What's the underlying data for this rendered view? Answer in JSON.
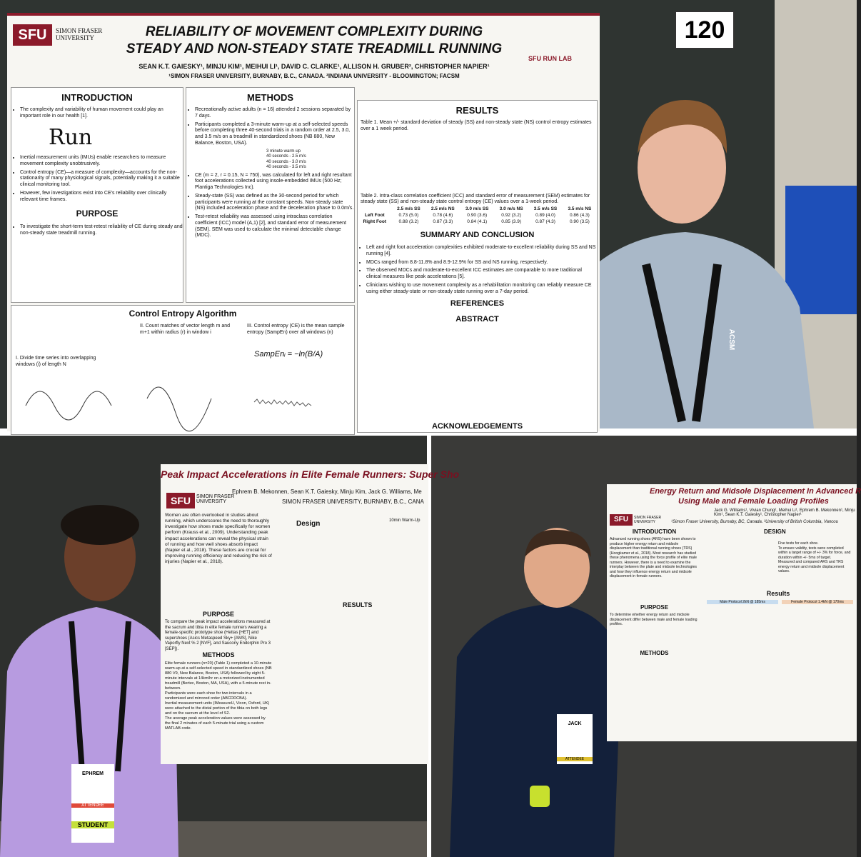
{
  "top": {
    "number": "120",
    "logo": "SFU",
    "university": "SIMON FRASER UNIVERSITY",
    "lab": "SFU RUN LAB",
    "title": [
      "RELIABILITY OF MOVEMENT COMPLEXITY DURING",
      "STEADY AND NON-STEADY STATE TREADMILL RUNNING"
    ],
    "authors": "SEAN K.T. GAIESKY¹, MINJU KIM¹, MEIHUI LI¹, DAVID C. CLARKE¹, ALLISON H. GRUBER², CHRISTOPHER NAPIER¹",
    "affiliation": "¹SIMON FRASER UNIVERSITY, BURNABY, B.C., CANADA. ²INDIANA UNIVERSITY - BLOOMINGTON; FACSM",
    "introduction": {
      "heading": "INTRODUCTION",
      "handwriting": "Run",
      "bullets": [
        "The complexity and variability of human movement could play an important role in our health [1].",
        "Inertial measurement units (IMUs) enable researchers to measure movement complexity unobtrusively.",
        "Control entropy (CE)—a measure of complexity—accounts for the non-stationarity of many physiological signals, potentially making it a suitable clinical monitoring tool.",
        "However, few investigations exist into CE's reliability over clinically relevant time frames."
      ]
    },
    "purpose": {
      "heading": "PURPOSE",
      "bullets": [
        "To investigate the short-term test-retest reliability of CE during steady and non-steady state treadmill running."
      ]
    },
    "algorithm": {
      "heading": "Control Entropy Algorithm",
      "steps": [
        "I. Divide time series into overlapping windows (i) of length N",
        "II. Count matches of vector length m and m+1 within radius (r) in window i",
        "III. Control entropy (CE) is the mean sample entropy (SampEn) over all windows (n)"
      ],
      "formula": "SampEnᵢ = −ln(B/A)"
    },
    "methods": {
      "heading": "METHODS",
      "bullets": [
        "Recreationally active adults (n = 16) attended 2 sessions separated by 7 days.",
        "Participants completed a 3-minute warm-up at a self-selected speeds before completing three 40-second trials in a random order at 2.5, 3.0, and 3.5 m/s on a treadmill in standardized shoes (NB 880, New Balance, Boston, USA).",
        "CE (m = 2, r = 0.15, N = 750), was calculated for left and right resultant foot accelerations collected using insole-embedded IMUs (500 Hz; Plantiga Technologies Inc).",
        "Steady-state (SS) was defined as the 30-second period for which participants were running at the constant speeds. Non-steady state (NS) included acceleration phase and the deceleration phase to 0.0m/s.",
        "Test-retest reliability was assessed using intraclass correlation coefficient (ICC) model (A,1) [2], and standard error of measurement (SEM). SEM was used to calculate the minimal detectable change (MDC)."
      ],
      "protocol": [
        "3 minute warm-up",
        "40 seconds - 2.5 m/s",
        "40 seconds - 3.0 m/s",
        "40 seconds - 3.5 m/s"
      ]
    },
    "results": {
      "heading": "RESULTS",
      "table1_caption": "Table 1. Mean +/- standard deviation of steady (SS) and non-steady state (NS) control entropy estimates over a 1 week period.",
      "table2_caption": "Table 2. Intra-class correlation coefficient (ICC) and standard error of measurement (SEM) estimates for steady state (SS) and non-steady state control entropy (CE) values over a 1-week period.",
      "table2_header": [
        "",
        "2.5 m/s SS",
        "2.5 m/s NS",
        "3.0 m/s SS",
        "3.0 m/s NS",
        "3.5 m/s SS",
        "3.5 m/s NS"
      ],
      "table2_rows": [
        [
          "Left Foot",
          "0.73 (5.0)",
          "0.78 (4.6)",
          "0.90 (3.6)",
          "0.92 (3.2)",
          "0.89 (4.0)",
          "0.86 (4.3)"
        ],
        [
          "Right Foot",
          "0.88 (3.2)",
          "0.87 (3.3)",
          "0.84 (4.1)",
          "0.85 (3.9)",
          "0.87 (4.3)",
          "0.90 (3.5)"
        ]
      ]
    },
    "summary": {
      "heading": "SUMMARY AND CONCLUSION",
      "bullets": [
        "Left and right foot acceleration complexities exhibited moderate-to-excellent reliability during SS and NS running [4].",
        "MDCs ranged from 8.8-11.8% and 8.9-12.9% for SS and NS running, respectively.",
        "The observed MDCs and moderate-to-excellent ICC estimates are comparable to more traditional clinical measures like peak accelerations [5].",
        "Clinicians wishing to use movement complexity as a rehabilitation monitoring can reliably measure CE using either steady-state or non-steady state running over a 7-day period."
      ]
    },
    "references": "REFERENCES",
    "abstract": "ABSTRACT",
    "acknowledgements": "ACKNOWLEDGEMENTS",
    "lanyard": "ACSM"
  },
  "bottom_left": {
    "title": "Peak Impact Accelerations in Elite Female Runners: Super Sho",
    "authors": "Ephrem B. Mekonnen, Sean K.T. Gaiesky, Minju Kim, Jack G. Williams, Me",
    "affiliation": "SIMON FRASER UNIVERSITY, BURNABY, B.C., CANA",
    "logo": "SFU",
    "university": "SIMON FRASER UNIVERSITY",
    "intro": "Women are often overlooked in studies about running, which underscores the need to thoroughly investigate how shoes made specifically for women perform (Krauss et al., 2009). Understanding peak impact accelerations can reveal the physical strain of running and how well shoes absorb impact (Napier et al., 2018). These factors are crucial for improving running efficiency and reducing the risk of injuries (Napier et al., 2018).",
    "design": "Design",
    "purpose_heading": "PURPOSE",
    "purpose": "To compare the peak impact accelerations measured at the sacrum and tibia in elite female runners wearing a female-specific prototype shoe (Hettas [HET] and supershoes (Asics Metaspeed Sky+ [AMS], Nike Vaporfly Next % 2 [NVF], and Saucony Endorphin Pro 3 [SEP]).",
    "methods_heading": "METHODS",
    "methods": [
      "Elite female runners (n=20) (Table 1) completed a 10-minute warm-up at a self-selected speed in standardized shoes (NB 880 V9, New Balance, Boston, USA) followed by eight 5-minute intervals at 14km/hr on a motorized instrumented treadmill (Bertec, Boston, MA, USA), with a 5-minute rest in-between.",
      "Participants were each shoe for two intervals in a randomized and mirrored order (ABCDDCBA).",
      "Inertial measurement units (IMeasureU, Vicon, Oxford, UK) were attached to the distal portion of the tibia on both legs and on the sacrum at the level of S2.",
      "The average peak acceleration values were assessed by the final 2 minutes of each 5-minute trial using a custom MATLAB code."
    ],
    "results_heading": "RESULTS",
    "warmup": "10min Warm-Up",
    "badge": "EPHREM",
    "badge_role": "STUDENT",
    "attendee": "ATTENDEE"
  },
  "bottom_right": {
    "title": [
      "Energy Return and Midsole Displacement In Advanced R",
      "Using Male and Female Loading Profiles"
    ],
    "authors": "Jack G. Williams¹, Vivian Chung², Meihui Li¹, Ephrem B. Mekonnen¹, Minju Kim¹, Sean K.T. Gaiesky¹, Christopher Napier¹",
    "affiliation": "¹Simon Fraser University, Burnaby, BC, Canada. ²University of British Columbia, Vancou",
    "logo": "SFU",
    "university": "SIMON FRASER UNIVERSITY",
    "intro_heading": "INTRODUCTION",
    "intro": "Advanced running shoes (ARS) have been shown to produce higher energy return and midsole displacement than traditional running shoes (TRS) (Hoogkamer et al., 2018). Most research has studied these phenomena using the force profile of elite male runners. However, there is a need to examine the interplay between the plate and midsole technologies and how they influence energy return and midsole displacement in female runners.",
    "design_heading": "DESIGN",
    "design": [
      "Five tests for each shoe.",
      "To ensure validity, tests were completed within a target range of +/- 3% for force, and duration within +/- 5ms of target.",
      "Measured and compared ARS and TRS energy return and midsole displacement values."
    ],
    "purpose_heading": "PURPOSE",
    "purpose": "To determine whether energy return and midsole displacement differ between male and female loading profiles.",
    "methods_heading": "METHODS",
    "results_heading": "Results",
    "male": "Male Protocol 2kN @ 185ms",
    "female": "Female Protocol 1.4kN @ 170ms",
    "badge": "JACK",
    "attendee": "ATTENDEE"
  }
}
